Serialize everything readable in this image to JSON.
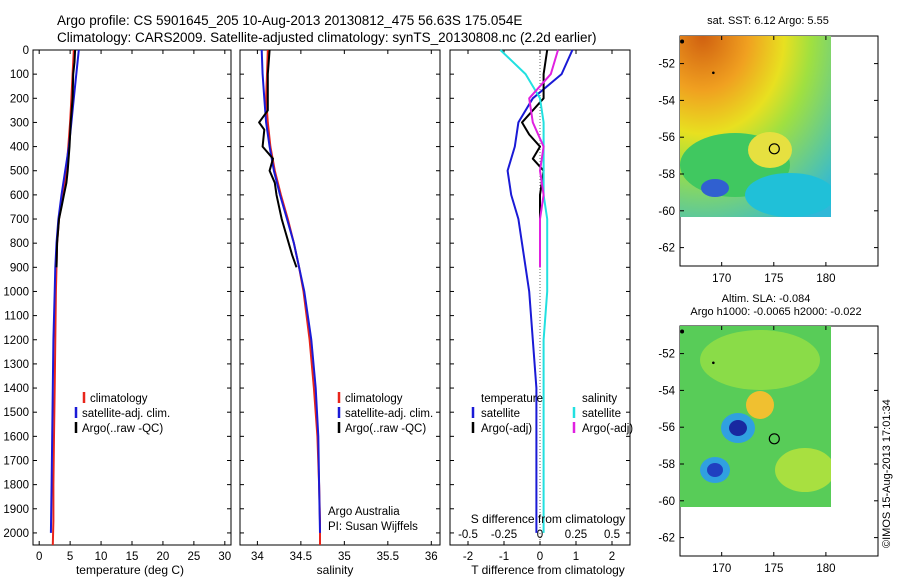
{
  "header": {
    "line1": "Argo profile: CS 5901645_205 10-Aug-2013 20130812_475 56.63S 175.054E",
    "line2": "Climatology: CARS2009. Satellite-adjusted climatology: synTS_20130808.nc (2.2d earlier)"
  },
  "credit": {
    "line1": "Argo Australia",
    "line2": "PI: Susan Wijffels"
  },
  "stamp": "©IMOS 15-Aug-2013 17:01:34",
  "colors": {
    "climatology": "#e8251b",
    "satellite": "#1a1ad6",
    "argo": "#000000",
    "sat_diff_s": "#22e0e0",
    "argo_diff_s": "#e020e0"
  },
  "depth_ticks": [
    0,
    100,
    200,
    300,
    400,
    500,
    600,
    700,
    800,
    900,
    1000,
    1100,
    1200,
    1300,
    1400,
    1500,
    1600,
    1700,
    1800,
    1900,
    2000
  ],
  "chart_data": [
    {
      "type": "line",
      "xlabel": "temperature (deg C)",
      "xlim": [
        -1,
        31
      ],
      "xticks": [
        0,
        5,
        10,
        15,
        20,
        25,
        30
      ],
      "ylim": [
        0,
        2050
      ],
      "y_reversed": true,
      "legend": [
        "climatology",
        "satellite-adj. clim.",
        "Argo(..raw -QC)"
      ],
      "series": [
        {
          "name": "climatology",
          "color": "climatology",
          "x": [
            5.6,
            5.4,
            5.2,
            5.0,
            4.7,
            4.4,
            3.8,
            3.2,
            2.9,
            2.8,
            2.7,
            2.6,
            2.5,
            2.4,
            2.3,
            2.3,
            2.2
          ],
          "y": [
            0,
            100,
            200,
            300,
            400,
            500,
            600,
            700,
            800,
            900,
            1000,
            1200,
            1400,
            1600,
            1800,
            1950,
            2050
          ]
        },
        {
          "name": "satellite-adj. clim.",
          "color": "satellite",
          "x": [
            6.4,
            6.0,
            5.6,
            5.2,
            4.8,
            4.2,
            3.6,
            3.1,
            2.8,
            2.6,
            2.5,
            2.3,
            2.2,
            2.1,
            2.0,
            1.9
          ],
          "y": [
            0,
            100,
            200,
            300,
            400,
            500,
            600,
            700,
            800,
            900,
            1000,
            1200,
            1400,
            1600,
            1800,
            2000
          ]
        },
        {
          "name": "Argo(..raw -QC)",
          "color": "argo",
          "x": [
            5.8,
            5.7,
            5.5,
            5.4,
            5.1,
            4.9,
            4.6,
            4.4,
            4.0,
            3.6,
            3.2,
            2.9,
            2.8
          ],
          "y": [
            0,
            50,
            100,
            200,
            300,
            400,
            500,
            550,
            600,
            650,
            700,
            800,
            900
          ]
        }
      ]
    },
    {
      "type": "line",
      "xlabel": "salinity",
      "xlim": [
        33.8,
        36.1
      ],
      "xticks": [
        34,
        34.5,
        35,
        35.5,
        36
      ],
      "ylim": [
        0,
        2050
      ],
      "y_reversed": true,
      "legend": [
        "climatology",
        "satellite-adj. clim.",
        "Argo(..raw -QC)"
      ],
      "series": [
        {
          "name": "climatology",
          "color": "climatology",
          "x": [
            34.12,
            34.11,
            34.1,
            34.12,
            34.15,
            34.2,
            34.27,
            34.35,
            34.42,
            34.48,
            34.53,
            34.6,
            34.65,
            34.69,
            34.71,
            34.72,
            34.72
          ],
          "y": [
            0,
            100,
            200,
            300,
            400,
            500,
            600,
            700,
            800,
            900,
            1000,
            1200,
            1400,
            1600,
            1800,
            1950,
            2050
          ]
        },
        {
          "name": "satellite-adj. clim.",
          "color": "satellite",
          "x": [
            34.05,
            34.06,
            34.08,
            34.1,
            34.14,
            34.19,
            34.26,
            34.34,
            34.42,
            34.48,
            34.54,
            34.62,
            34.67,
            34.7,
            34.71,
            34.72
          ],
          "y": [
            0,
            100,
            200,
            300,
            400,
            500,
            600,
            700,
            800,
            900,
            1000,
            1200,
            1400,
            1600,
            1800,
            2000
          ]
        },
        {
          "name": "Argo(..raw -QC)",
          "color": "argo",
          "x": [
            34.14,
            34.13,
            34.12,
            34.12,
            34.02,
            34.08,
            34.06,
            34.18,
            34.14,
            34.2,
            34.22,
            34.28,
            34.32,
            34.4,
            34.45
          ],
          "y": [
            0,
            50,
            100,
            250,
            300,
            330,
            400,
            450,
            500,
            550,
            600,
            700,
            750,
            850,
            900
          ]
        }
      ]
    },
    {
      "type": "line",
      "xlabel": "T difference from climatology",
      "xlabel_top": "S difference from climatology",
      "xlim": [
        -2.5,
        2.5
      ],
      "xticks": [
        -2,
        -1,
        0,
        1,
        2
      ],
      "xticks_top": [
        "-0.5",
        "-0.25",
        "0",
        "0.25",
        "0.5"
      ],
      "ylim": [
        0,
        2050
      ],
      "y_reversed": true,
      "legend_temperature": {
        "title": "temperature",
        "entries": [
          "satellite",
          "Argo(-adj)"
        ]
      },
      "legend_salinity": {
        "title": "salinity",
        "entries": [
          "satellite",
          "Argo(-adj)"
        ]
      },
      "series": [
        {
          "name": "satellite",
          "color": "satellite",
          "x": [
            0.9,
            0.6,
            -0.2,
            -0.6,
            -0.7,
            -0.9,
            -0.8,
            -0.6,
            -0.5,
            -0.4,
            -0.3,
            -0.2,
            -0.1,
            -0.1,
            -0.1
          ],
          "y": [
            0,
            100,
            200,
            300,
            400,
            500,
            600,
            700,
            800,
            900,
            1000,
            1200,
            1400,
            1600,
            2000
          ]
        },
        {
          "name": "Argo(-adj)",
          "color": "argo",
          "x": [
            0.2,
            0.1,
            0.1,
            -0.5,
            -0.3,
            0.0,
            -0.2,
            0.1,
            0.0,
            0.0,
            0.0,
            0.0
          ],
          "y": [
            0,
            100,
            200,
            300,
            350,
            400,
            450,
            500,
            600,
            700,
            800,
            900
          ]
        },
        {
          "name": "satellite",
          "color": "sat_diff_s",
          "x": [
            -1.1,
            -0.4,
            0.0,
            0.1,
            0.1,
            0.1,
            0.1,
            0.2,
            0.2,
            0.2,
            0.2,
            0.1,
            0.1,
            0.1
          ],
          "y": [
            0,
            100,
            200,
            300,
            400,
            500,
            600,
            700,
            800,
            900,
            1000,
            1200,
            1600,
            2000
          ]
        },
        {
          "name": "Argo(-adj)",
          "color": "argo_diff_s",
          "x": [
            0.5,
            0.3,
            -0.3,
            -0.2,
            0.1,
            0.0,
            0.1,
            0.0,
            0.0,
            0.0
          ],
          "y": [
            0,
            100,
            200,
            300,
            400,
            500,
            600,
            700,
            800,
            900
          ]
        }
      ]
    },
    {
      "type": "heatmap",
      "title": "sat. SST: 6.12 Argo: 5.55",
      "xlim": [
        166,
        185
      ],
      "xticks": [
        170,
        175,
        180
      ],
      "ylim": [
        -63,
        -50.5
      ],
      "yticks": [
        -52,
        -54,
        -56,
        -58,
        -60,
        -62
      ],
      "float_position": [
        175.05,
        -56.63
      ]
    },
    {
      "type": "heatmap",
      "title_line1": "Altim. SLA: -0.084",
      "title_line2": "Argo h1000: -0.0065 h2000: -0.022",
      "xlim": [
        166,
        185
      ],
      "xticks": [
        170,
        175,
        180
      ],
      "ylim": [
        -63,
        -50.5
      ],
      "yticks": [
        -52,
        -54,
        -56,
        -58,
        -60,
        -62
      ],
      "float_position": [
        175.05,
        -56.63
      ]
    }
  ]
}
